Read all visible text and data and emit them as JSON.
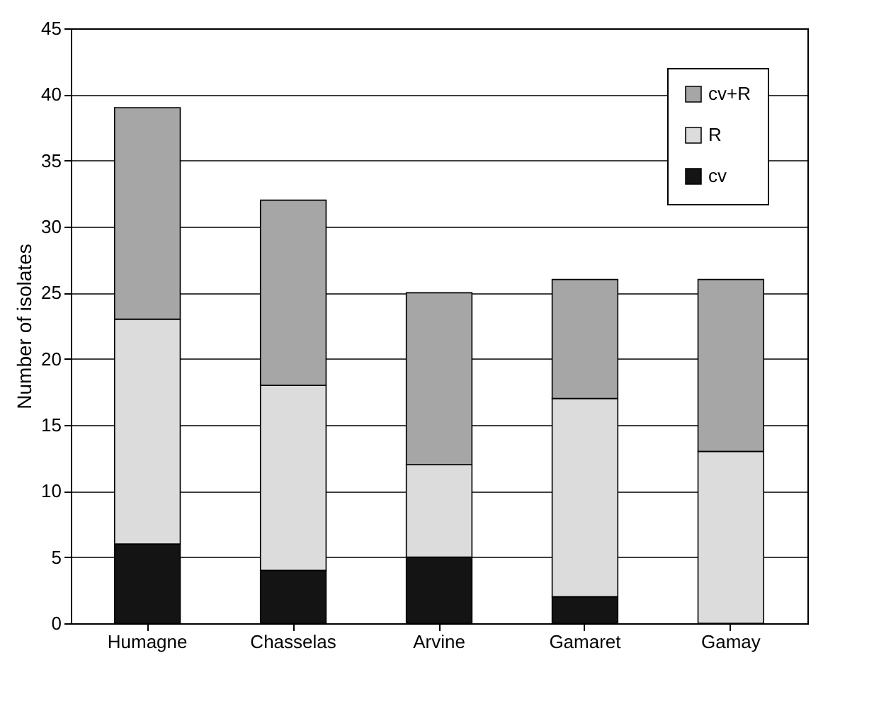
{
  "chart_data": {
    "type": "bar",
    "stacked": true,
    "ylabel": "Number of isolates",
    "categories": [
      "Humagne",
      "Chasselas",
      "Arvine",
      "Gamaret",
      "Gamay"
    ],
    "series": [
      {
        "name": "cv",
        "color": "#141414",
        "values": [
          6,
          4,
          5,
          2,
          0
        ]
      },
      {
        "name": "R",
        "color": "#dcdcdc",
        "values": [
          17,
          14,
          7,
          15,
          13
        ]
      },
      {
        "name": "cv+R",
        "color": "#a6a6a6",
        "values": [
          16,
          14,
          13,
          9,
          13
        ]
      }
    ],
    "ylim": [
      0,
      45
    ],
    "yticks": [
      0,
      5,
      10,
      15,
      20,
      25,
      30,
      35,
      40,
      45
    ],
    "grid": "y",
    "legend": "top right"
  }
}
